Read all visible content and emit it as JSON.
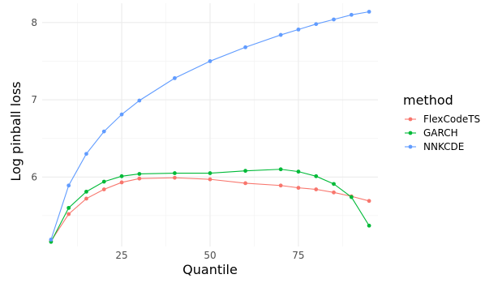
{
  "chart_data": {
    "type": "line",
    "xlabel": "Quantile",
    "ylabel": "Log pinball loss",
    "x": [
      5,
      10,
      15,
      20,
      25,
      30,
      40,
      50,
      60,
      70,
      75,
      80,
      85,
      90,
      95
    ],
    "xlim": [
      2.5,
      97.5
    ],
    "ylim": [
      5.1,
      8.25
    ],
    "xticks": [
      25,
      50,
      75
    ],
    "yticks": [
      6,
      7,
      8
    ],
    "x_tick_labels": [
      "25",
      "50",
      "75"
    ],
    "y_tick_labels": [
      "6",
      "7",
      "8"
    ],
    "grid": true,
    "legend": {
      "title": "method",
      "position": "right"
    },
    "series": [
      {
        "name": "FlexCodeTS",
        "color": "#F8766D",
        "values": [
          5.17,
          5.52,
          5.72,
          5.84,
          5.93,
          5.98,
          5.99,
          5.97,
          5.92,
          5.89,
          5.86,
          5.84,
          5.8,
          5.75,
          5.69
        ]
      },
      {
        "name": "GARCH",
        "color": "#00BA38",
        "values": [
          5.16,
          5.6,
          5.81,
          5.94,
          6.01,
          6.04,
          6.05,
          6.05,
          6.08,
          6.1,
          6.07,
          6.01,
          5.91,
          5.74,
          5.37
        ]
      },
      {
        "name": "NNKCDE",
        "color": "#619CFF",
        "values": [
          5.19,
          5.89,
          6.3,
          6.59,
          6.81,
          6.99,
          7.28,
          7.5,
          7.68,
          7.84,
          7.91,
          7.98,
          8.04,
          8.1,
          8.14
        ]
      }
    ]
  }
}
